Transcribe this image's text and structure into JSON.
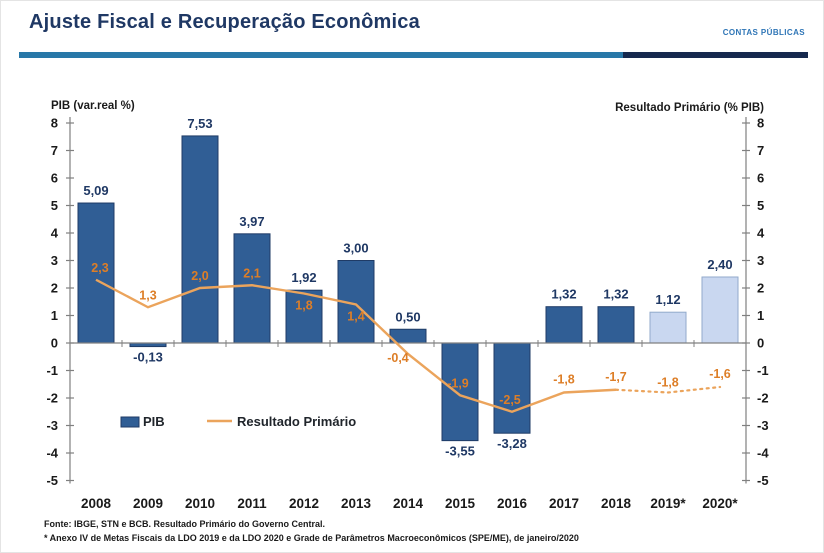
{
  "header": {
    "title": "Ajuste Fiscal e Recuperação Econômica",
    "tag": "CONTAS PÚBLICAS"
  },
  "chart_data": {
    "type": "bar",
    "subtype": "bar-with-line",
    "categories": [
      "2008",
      "2009",
      "2010",
      "2011",
      "2012",
      "2013",
      "2014",
      "2015",
      "2016",
      "2017",
      "2018",
      "2019*",
      "2020*"
    ],
    "series": [
      {
        "name": "PIB",
        "type": "bar",
        "axis_title": "PIB (var.real %)",
        "values": [
          5.09,
          -0.13,
          7.53,
          3.97,
          1.92,
          3.0,
          0.5,
          -3.55,
          -3.28,
          1.32,
          1.32,
          1.12,
          2.4
        ],
        "labels": [
          "5,09",
          "-0,13",
          "7,53",
          "3,97",
          "1,92",
          "3,00",
          "0,50",
          "-3,55",
          "-3,28",
          "1,32",
          "1,32",
          "1,12",
          "2,40"
        ],
        "forecast_from_index": 11
      },
      {
        "name": "Resultado Primário",
        "type": "line",
        "axis_title": "Resultado Primário (% PIB)",
        "values": [
          2.3,
          1.3,
          2.0,
          2.1,
          1.8,
          1.4,
          -0.4,
          -1.9,
          -2.5,
          -1.8,
          -1.7,
          -1.8,
          -1.6
        ],
        "labels": [
          "2,3",
          "1,3",
          "2,0",
          "2,1",
          "1,8",
          "1,4",
          "-0,4",
          "-1,9",
          "-2,5",
          "-1,8",
          "-1,7",
          "-1,8",
          "-1,6"
        ],
        "dotted_from_index": 10
      }
    ],
    "y_axis": {
      "min": -5,
      "max": 8,
      "step": 1
    },
    "legend": [
      "PIB",
      "Resultado Primário"
    ],
    "legend_position": "inside-bottom-left",
    "grid": false,
    "colors": {
      "bar": "#305E95",
      "bar_border": "#1F3B66",
      "bar_forecast": "#C9D7F0",
      "bar_forecast_border": "#92AACB",
      "line": "#EBA45C",
      "line_label": "#DD7E27",
      "bar_label": "#1F3864",
      "axis": "#808080",
      "tick_label": "#1A1A1A",
      "category_label": "#1A1A1A",
      "legend_label": "#20252B"
    }
  },
  "footnotes": [
    "Fonte: IBGE, STN e BCB. Resultado Primário do Governo Central.",
    "* Anexo IV de Metas Fiscais da LDO 2019 e da LDO 2020  e Grade de Parâmetros Macroeconômicos (SPE/ME),  de janeiro/2020"
  ]
}
